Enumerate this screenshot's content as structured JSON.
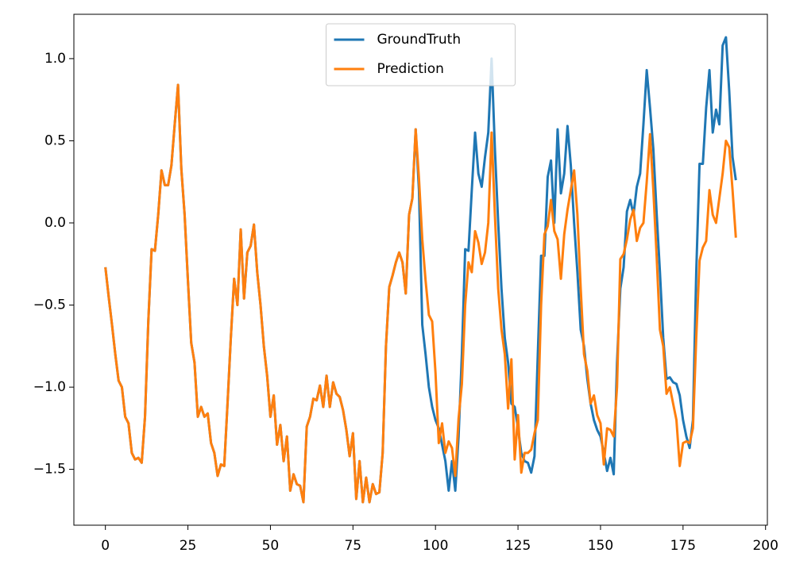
{
  "chart_data": {
    "type": "line",
    "x": [
      0,
      1,
      2,
      3,
      4,
      5,
      6,
      7,
      8,
      9,
      10,
      11,
      12,
      13,
      14,
      15,
      16,
      17,
      18,
      19,
      20,
      21,
      22,
      23,
      24,
      25,
      26,
      27,
      28,
      29,
      30,
      31,
      32,
      33,
      34,
      35,
      36,
      37,
      38,
      39,
      40,
      41,
      42,
      43,
      44,
      45,
      46,
      47,
      48,
      49,
      50,
      51,
      52,
      53,
      54,
      55,
      56,
      57,
      58,
      59,
      60,
      61,
      62,
      63,
      64,
      65,
      66,
      67,
      68,
      69,
      70,
      71,
      72,
      73,
      74,
      75,
      76,
      77,
      78,
      79,
      80,
      81,
      82,
      83,
      84,
      85,
      86,
      87,
      88,
      89,
      90,
      91,
      92,
      93,
      94,
      95,
      96,
      97,
      98,
      99,
      100,
      101,
      102,
      103,
      104,
      105,
      106,
      107,
      108,
      109,
      110,
      111,
      112,
      113,
      114,
      115,
      116,
      117,
      118,
      119,
      120,
      121,
      122,
      123,
      124,
      125,
      126,
      127,
      128,
      129,
      130,
      131,
      132,
      133,
      134,
      135,
      136,
      137,
      138,
      139,
      140,
      141,
      142,
      143,
      144,
      145,
      146,
      147,
      148,
      149,
      150,
      151,
      152,
      153,
      154,
      155,
      156,
      157,
      158,
      159,
      160,
      161,
      162,
      163,
      164,
      165,
      166,
      167,
      168,
      169,
      170,
      171,
      172,
      173,
      174,
      175,
      176,
      177,
      178,
      179,
      180,
      181,
      182,
      183,
      184,
      185,
      186,
      187,
      188,
      189,
      190,
      191
    ],
    "series": [
      {
        "name": "GroundTruth",
        "color": "#1f77b4",
        "values": [
          -0.27,
          -0.45,
          -0.62,
          -0.8,
          -0.96,
          -1.0,
          -1.18,
          -1.22,
          -1.4,
          -1.44,
          -1.43,
          -1.46,
          -1.18,
          -0.6,
          -0.16,
          -0.17,
          0.05,
          0.32,
          0.23,
          0.23,
          0.35,
          0.6,
          0.84,
          0.33,
          0.05,
          -0.35,
          -0.73,
          -0.85,
          -1.18,
          -1.12,
          -1.18,
          -1.16,
          -1.34,
          -1.4,
          -1.54,
          -1.47,
          -1.48,
          -1.1,
          -0.7,
          -0.34,
          -0.5,
          -0.04,
          -0.46,
          -0.18,
          -0.14,
          -0.01,
          -0.3,
          -0.5,
          -0.75,
          -0.93,
          -1.18,
          -1.05,
          -1.35,
          -1.23,
          -1.45,
          -1.3,
          -1.63,
          -1.53,
          -1.59,
          -1.6,
          -1.7,
          -1.24,
          -1.18,
          -1.07,
          -1.08,
          -0.99,
          -1.12,
          -0.93,
          -1.12,
          -0.97,
          -1.04,
          -1.06,
          -1.14,
          -1.26,
          -1.42,
          -1.28,
          -1.68,
          -1.45,
          -1.7,
          -1.55,
          -1.7,
          -1.59,
          -1.65,
          -1.64,
          -1.4,
          -0.75,
          -0.39,
          -0.32,
          -0.24,
          -0.18,
          -0.24,
          -0.43,
          0.05,
          0.15,
          0.57,
          0.2,
          -0.62,
          -0.8,
          -1.0,
          -1.12,
          -1.2,
          -1.25,
          -1.35,
          -1.45,
          -1.63,
          -1.45,
          -1.63,
          -1.3,
          -0.8,
          -0.16,
          -0.17,
          0.2,
          0.55,
          0.3,
          0.22,
          0.4,
          0.55,
          1.0,
          0.45,
          0.0,
          -0.4,
          -0.7,
          -0.85,
          -1.1,
          -1.12,
          -1.25,
          -1.4,
          -1.45,
          -1.46,
          -1.52,
          -1.42,
          -0.8,
          -0.2,
          -0.2,
          0.28,
          0.38,
          0.0,
          0.57,
          0.18,
          0.3,
          0.59,
          0.35,
          0.0,
          -0.3,
          -0.65,
          -0.75,
          -0.95,
          -1.1,
          -1.2,
          -1.26,
          -1.3,
          -1.4,
          -1.51,
          -1.43,
          -1.53,
          -0.85,
          -0.4,
          -0.27,
          0.07,
          0.14,
          0.05,
          0.22,
          0.3,
          0.6,
          0.93,
          0.7,
          0.45,
          0.06,
          -0.3,
          -0.7,
          -0.95,
          -0.94,
          -0.97,
          -0.98,
          -1.05,
          -1.2,
          -1.3,
          -1.37,
          -1.2,
          -0.3,
          0.36,
          0.36,
          0.7,
          0.93,
          0.55,
          0.69,
          0.6,
          1.08,
          1.13,
          0.8,
          0.4,
          0.26
        ]
      },
      {
        "name": "Prediction",
        "color": "#ff7f0e",
        "values": [
          -0.27,
          -0.45,
          -0.62,
          -0.8,
          -0.96,
          -1.0,
          -1.18,
          -1.22,
          -1.4,
          -1.44,
          -1.43,
          -1.46,
          -1.18,
          -0.6,
          -0.16,
          -0.17,
          0.05,
          0.32,
          0.23,
          0.23,
          0.35,
          0.6,
          0.84,
          0.33,
          0.05,
          -0.35,
          -0.73,
          -0.85,
          -1.18,
          -1.12,
          -1.18,
          -1.16,
          -1.34,
          -1.4,
          -1.54,
          -1.47,
          -1.48,
          -1.1,
          -0.7,
          -0.34,
          -0.5,
          -0.04,
          -0.46,
          -0.18,
          -0.14,
          -0.01,
          -0.3,
          -0.5,
          -0.75,
          -0.93,
          -1.18,
          -1.05,
          -1.35,
          -1.23,
          -1.45,
          -1.3,
          -1.63,
          -1.53,
          -1.59,
          -1.6,
          -1.7,
          -1.24,
          -1.18,
          -1.07,
          -1.08,
          -0.99,
          -1.12,
          -0.93,
          -1.12,
          -0.97,
          -1.04,
          -1.06,
          -1.14,
          -1.26,
          -1.42,
          -1.28,
          -1.68,
          -1.45,
          -1.7,
          -1.55,
          -1.7,
          -1.59,
          -1.65,
          -1.64,
          -1.4,
          -0.75,
          -0.39,
          -0.32,
          -0.24,
          -0.18,
          -0.24,
          -0.43,
          0.05,
          0.15,
          0.57,
          0.27,
          -0.1,
          -0.35,
          -0.56,
          -0.6,
          -0.91,
          -1.34,
          -1.22,
          -1.4,
          -1.33,
          -1.37,
          -1.54,
          -1.19,
          -0.98,
          -0.5,
          -0.24,
          -0.3,
          -0.05,
          -0.12,
          -0.25,
          -0.18,
          0.0,
          0.55,
          0.05,
          -0.4,
          -0.65,
          -0.8,
          -1.13,
          -0.83,
          -1.44,
          -1.17,
          -1.52,
          -1.4,
          -1.4,
          -1.38,
          -1.28,
          -1.2,
          -0.5,
          -0.07,
          -0.02,
          0.14,
          -0.05,
          -0.1,
          -0.34,
          -0.07,
          0.08,
          0.2,
          0.32,
          0.05,
          -0.4,
          -0.8,
          -0.9,
          -1.1,
          -1.05,
          -1.17,
          -1.22,
          -1.47,
          -1.25,
          -1.26,
          -1.3,
          -1.0,
          -0.22,
          -0.19,
          -0.1,
          0.02,
          0.08,
          -0.11,
          -0.03,
          0.0,
          0.25,
          0.54,
          0.2,
          -0.2,
          -0.65,
          -0.75,
          -1.04,
          -1.0,
          -1.1,
          -1.2,
          -1.48,
          -1.34,
          -1.33,
          -1.34,
          -1.25,
          -0.7,
          -0.23,
          -0.15,
          -0.11,
          0.2,
          0.05,
          0.0,
          0.15,
          0.3,
          0.5,
          0.46,
          0.2,
          -0.09
        ]
      }
    ],
    "xlim": [
      -9.55,
      200.55
    ],
    "ylim": [
      -1.84,
      1.27
    ],
    "xticks": [
      0,
      25,
      50,
      75,
      100,
      125,
      150,
      175,
      200
    ],
    "yticks": [
      {
        "value": -1.5,
        "label": "−1.5"
      },
      {
        "value": -1.0,
        "label": "−1.0"
      },
      {
        "value": -0.5,
        "label": "−0.5"
      },
      {
        "value": 0.0,
        "label": "0.0"
      },
      {
        "value": 0.5,
        "label": "0.5"
      },
      {
        "value": 1.0,
        "label": "1.0"
      }
    ],
    "legend": "upper center"
  }
}
